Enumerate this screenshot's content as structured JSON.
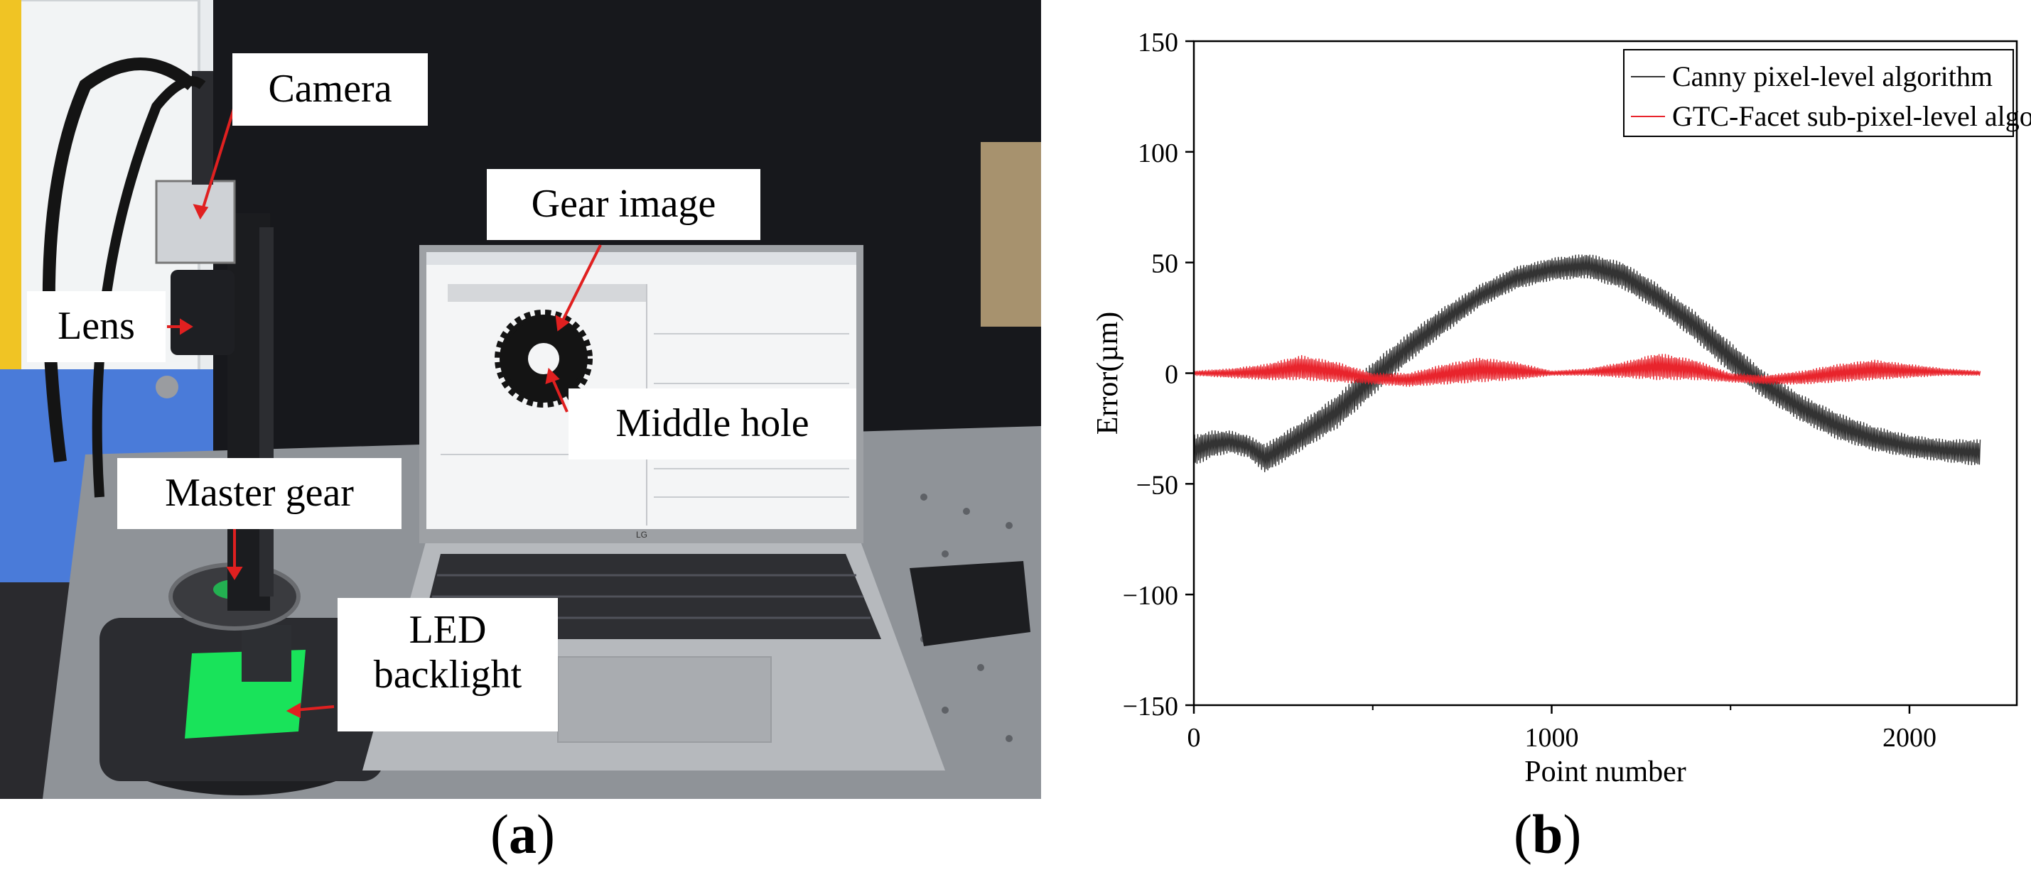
{
  "panel_a": {
    "callouts": {
      "camera": "Camera",
      "lens": "Lens",
      "gear_image": "Gear image",
      "middle_hole": "Middle hole",
      "master_gear": "Master gear",
      "led_line1": "LED",
      "led_line2": "backlight"
    },
    "laptop_brand": "LG"
  },
  "captions": {
    "a": "a",
    "b": "b"
  },
  "colors": {
    "canny": "#333333",
    "gtc": "#e8242c",
    "arrow": "#e02020",
    "led_green": "#19e35a"
  },
  "chart_data": {
    "type": "line",
    "title": "",
    "xlabel": "Point number",
    "ylabel": "Error(µm)",
    "xlim": [
      0,
      2300
    ],
    "ylim": [
      -150,
      150
    ],
    "xticks": [
      0,
      1000,
      2000
    ],
    "yticks": [
      150,
      100,
      50,
      0,
      -50,
      -100,
      -150
    ],
    "grid": false,
    "legend_position": "top-right",
    "series": [
      {
        "name": "Canny pixel-level algorithm",
        "color": "#333333",
        "style": "dense-oscillating",
        "x": [
          0,
          50,
          100,
          150,
          200,
          300,
          400,
          500,
          600,
          700,
          800,
          900,
          1000,
          1100,
          1200,
          1300,
          1400,
          1500,
          1600,
          1700,
          1800,
          1900,
          2000,
          2100,
          2200
        ],
        "lower": [
          -42,
          -38,
          -36,
          -38,
          -45,
          -35,
          -25,
          -10,
          5,
          18,
          30,
          38,
          42,
          43,
          38,
          28,
          15,
          0,
          -12,
          -22,
          -30,
          -35,
          -38,
          -40,
          -42
        ],
        "upper": [
          -28,
          -26,
          -26,
          -28,
          -32,
          -22,
          -10,
          5,
          18,
          30,
          40,
          48,
          52,
          54,
          50,
          40,
          28,
          14,
          0,
          -10,
          -18,
          -24,
          -28,
          -30,
          -30
        ]
      },
      {
        "name": "GTC-Facet sub-pixel-level algorithm",
        "color": "#e8242c",
        "style": "dense-oscillating",
        "x": [
          0,
          100,
          200,
          300,
          400,
          500,
          600,
          700,
          800,
          900,
          1000,
          1100,
          1200,
          1300,
          1400,
          1500,
          1600,
          1700,
          1800,
          1900,
          2000,
          2100,
          2200
        ],
        "lower": [
          -1,
          -2,
          -3,
          -3,
          -4,
          -5,
          -6,
          -5,
          -4,
          -3,
          -1,
          -1,
          -2,
          -3,
          -3,
          -4,
          -5,
          -5,
          -4,
          -3,
          -2,
          -1,
          -1
        ],
        "upper": [
          1,
          2,
          4,
          8,
          5,
          0,
          0,
          4,
          7,
          5,
          1,
          2,
          5,
          9,
          6,
          0,
          -1,
          1,
          4,
          6,
          4,
          2,
          1
        ]
      }
    ]
  }
}
